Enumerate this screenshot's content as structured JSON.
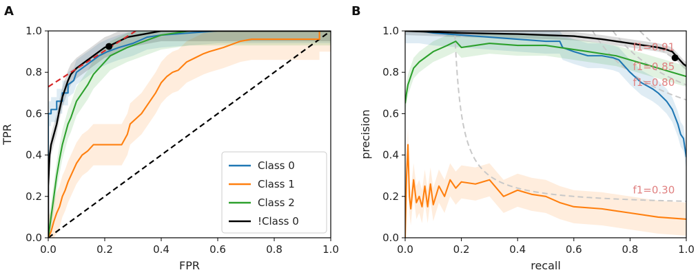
{
  "colors": {
    "class0": "#1f77b4",
    "class1": "#ff7f0e",
    "class2": "#2ca02c",
    "notclass0": "#000000",
    "diagonal": "#000000",
    "tangent": "#d62728",
    "isoF1": "#c8c8c8",
    "isoF1Label": "#e08080"
  },
  "chart_data": [
    {
      "panel": "A",
      "type": "line",
      "title": "",
      "xlabel": "FPR",
      "ylabel": "TPR",
      "xlim": [
        0,
        1
      ],
      "ylim": [
        0,
        1
      ],
      "xticks": [
        "0.0",
        "0.2",
        "0.4",
        "0.6",
        "0.8",
        "1.0"
      ],
      "yticks": [
        "0.0",
        "0.2",
        "0.4",
        "0.6",
        "0.8",
        "1.0"
      ],
      "legend_position": "lower-right",
      "series": [
        {
          "name": "Class 0",
          "key": "class0",
          "x": [
            0,
            0,
            0.01,
            0.01,
            0.03,
            0.03,
            0.05,
            0.05,
            0.07,
            0.07,
            0.09,
            0.1,
            0.12,
            0.14,
            0.16,
            0.18,
            0.21,
            0.25,
            0.3,
            0.35,
            0.4,
            0.5,
            0.6,
            0.74,
            0.85,
            1.0
          ],
          "y": [
            0,
            0.6,
            0.6,
            0.62,
            0.62,
            0.66,
            0.66,
            0.7,
            0.7,
            0.74,
            0.76,
            0.8,
            0.82,
            0.84,
            0.86,
            0.88,
            0.9,
            0.92,
            0.94,
            0.97,
            0.98,
            0.99,
            1.0,
            1.0,
            1.0,
            1.0
          ],
          "band_halfwidth": 0.06
        },
        {
          "name": "Class 1",
          "key": "class1",
          "x": [
            0,
            0.01,
            0.02,
            0.03,
            0.04,
            0.05,
            0.06,
            0.07,
            0.08,
            0.09,
            0.1,
            0.11,
            0.12,
            0.14,
            0.16,
            0.2,
            0.26,
            0.28,
            0.29,
            0.33,
            0.36,
            0.38,
            0.4,
            0.42,
            0.44,
            0.46,
            0.49,
            0.52,
            0.55,
            0.57,
            0.62,
            0.66,
            0.68,
            0.72,
            0.8,
            0.88,
            0.96,
            0.96,
            1.0
          ],
          "y": [
            0,
            0.03,
            0.08,
            0.12,
            0.15,
            0.2,
            0.23,
            0.27,
            0.3,
            0.33,
            0.36,
            0.38,
            0.4,
            0.42,
            0.45,
            0.45,
            0.45,
            0.5,
            0.55,
            0.6,
            0.66,
            0.7,
            0.75,
            0.78,
            0.8,
            0.81,
            0.85,
            0.87,
            0.89,
            0.9,
            0.92,
            0.94,
            0.95,
            0.96,
            0.96,
            0.96,
            0.96,
            1.0,
            1.0
          ],
          "band_halfwidth": 0.1
        },
        {
          "name": "Class 2",
          "key": "class2",
          "x": [
            0,
            0.01,
            0.02,
            0.03,
            0.04,
            0.05,
            0.06,
            0.07,
            0.08,
            0.09,
            0.1,
            0.12,
            0.14,
            0.16,
            0.18,
            0.2,
            0.22,
            0.25,
            0.28,
            0.32,
            0.36,
            0.4,
            0.45,
            0.5,
            0.6,
            0.7,
            1.0
          ],
          "y": [
            0,
            0.1,
            0.2,
            0.3,
            0.38,
            0.45,
            0.5,
            0.55,
            0.58,
            0.62,
            0.66,
            0.7,
            0.74,
            0.79,
            0.82,
            0.85,
            0.88,
            0.9,
            0.92,
            0.94,
            0.96,
            0.98,
            0.99,
            1.0,
            1.0,
            1.0,
            1.0
          ],
          "band_halfwidth": 0.07
        },
        {
          "name": "!Class 0",
          "key": "notclass0",
          "x": [
            0,
            0,
            0.005,
            0.01,
            0.02,
            0.03,
            0.04,
            0.05,
            0.06,
            0.07,
            0.08,
            0.1,
            0.12,
            0.14,
            0.16,
            0.18,
            0.2,
            0.22,
            0.25,
            0.28,
            0.32,
            0.36,
            0.4,
            0.5,
            0.7,
            1.0
          ],
          "y": [
            0,
            0.25,
            0.4,
            0.45,
            0.5,
            0.55,
            0.62,
            0.68,
            0.72,
            0.76,
            0.79,
            0.82,
            0.84,
            0.86,
            0.88,
            0.9,
            0.92,
            0.93,
            0.95,
            0.97,
            0.98,
            0.99,
            1.0,
            1.0,
            1.0,
            1.0
          ],
          "band_halfwidth": 0.05
        }
      ],
      "diagonal": {
        "x": [
          0,
          1
        ],
        "y": [
          0,
          1
        ]
      },
      "tangent": {
        "x": [
          0,
          0.31
        ],
        "y": [
          0.73,
          1.0
        ]
      },
      "marker": {
        "x": 0.215,
        "y": 0.925
      }
    },
    {
      "panel": "B",
      "type": "line",
      "title": "",
      "xlabel": "recall",
      "ylabel": "precision",
      "xlim": [
        0,
        1
      ],
      "ylim": [
        0,
        1
      ],
      "xticks": [
        "0.0",
        "0.2",
        "0.4",
        "0.6",
        "0.8",
        "1.0"
      ],
      "yticks": [
        "0.0",
        "0.2",
        "0.4",
        "0.6",
        "0.8",
        "1.0"
      ],
      "iso_f1": [
        {
          "f1": 0.91,
          "label": "f1=0.91",
          "label_at": [
            0.81,
            0.905
          ]
        },
        {
          "f1": 0.85,
          "label": "f1=0.85",
          "label_at": [
            0.81,
            0.81
          ]
        },
        {
          "f1": 0.8,
          "label": "f1=0.80",
          "label_at": [
            0.81,
            0.735
          ]
        },
        {
          "f1": 0.3,
          "label": "f1=0.30",
          "label_at": [
            0.81,
            0.215
          ]
        }
      ],
      "series": [
        {
          "name": "Class 0",
          "key": "class0",
          "x": [
            0,
            0.05,
            0.1,
            0.2,
            0.3,
            0.4,
            0.5,
            0.55,
            0.56,
            0.6,
            0.65,
            0.7,
            0.74,
            0.76,
            0.8,
            0.84,
            0.88,
            0.9,
            0.93,
            0.95,
            0.97,
            0.98,
            0.99,
            1.0
          ],
          "y": [
            1.0,
            1.0,
            0.99,
            0.98,
            0.97,
            0.96,
            0.95,
            0.95,
            0.92,
            0.9,
            0.88,
            0.88,
            0.87,
            0.86,
            0.8,
            0.75,
            0.72,
            0.7,
            0.66,
            0.62,
            0.55,
            0.5,
            0.48,
            0.39
          ],
          "band_halfwidth": 0.06
        },
        {
          "name": "Class 1",
          "key": "class1",
          "x": [
            0,
            0.005,
            0.01,
            0.015,
            0.02,
            0.03,
            0.04,
            0.05,
            0.06,
            0.07,
            0.08,
            0.09,
            0.1,
            0.12,
            0.14,
            0.16,
            0.18,
            0.2,
            0.25,
            0.3,
            0.35,
            0.4,
            0.45,
            0.5,
            0.55,
            0.6,
            0.7,
            0.8,
            0.9,
            1.0
          ],
          "y": [
            0,
            0.3,
            0.45,
            0.2,
            0.14,
            0.28,
            0.17,
            0.2,
            0.15,
            0.25,
            0.15,
            0.26,
            0.16,
            0.25,
            0.2,
            0.28,
            0.24,
            0.27,
            0.26,
            0.28,
            0.2,
            0.23,
            0.21,
            0.2,
            0.17,
            0.15,
            0.14,
            0.12,
            0.1,
            0.09
          ],
          "band_halfwidth": 0.08
        },
        {
          "name": "Class 2",
          "key": "class2",
          "x": [
            0,
            0.005,
            0.01,
            0.02,
            0.03,
            0.05,
            0.08,
            0.1,
            0.15,
            0.18,
            0.2,
            0.3,
            0.4,
            0.5,
            0.6,
            0.65,
            0.7,
            0.75,
            0.8,
            0.85,
            0.9,
            0.95,
            1.0
          ],
          "y": [
            0.65,
            0.7,
            0.74,
            0.78,
            0.82,
            0.85,
            0.88,
            0.9,
            0.93,
            0.95,
            0.92,
            0.94,
            0.93,
            0.93,
            0.91,
            0.9,
            0.89,
            0.88,
            0.86,
            0.84,
            0.82,
            0.8,
            0.78
          ],
          "band_halfwidth": 0.05
        },
        {
          "name": "!Class 0",
          "key": "notclass0",
          "x": [
            0,
            0.2,
            0.4,
            0.5,
            0.6,
            0.7,
            0.75,
            0.8,
            0.85,
            0.9,
            0.93,
            0.95,
            0.97,
            0.99,
            1.0
          ],
          "y": [
            1.0,
            0.99,
            0.985,
            0.98,
            0.975,
            0.96,
            0.95,
            0.94,
            0.93,
            0.92,
            0.91,
            0.9,
            0.87,
            0.84,
            0.83
          ],
          "band_halfwidth": 0.02
        }
      ],
      "marker": {
        "x": 0.96,
        "y": 0.87
      }
    }
  ]
}
